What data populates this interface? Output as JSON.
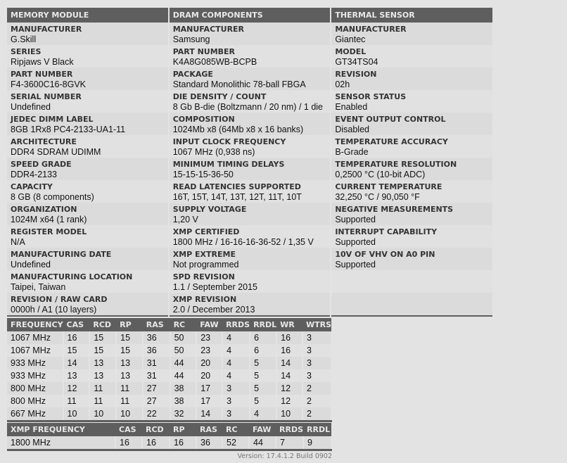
{
  "sections": [
    {
      "title": "MEMORY MODULE",
      "items": [
        {
          "label": "MANUFACTURER",
          "value": "G.Skill"
        },
        {
          "label": "SERIES",
          "value": "Ripjaws V Black"
        },
        {
          "label": "PART NUMBER",
          "value": "F4-3600C16-8GVK"
        },
        {
          "label": "SERIAL NUMBER",
          "value": "Undefined"
        },
        {
          "label": "JEDEC DIMM LABEL",
          "value": "8GB 1Rx8 PC4-2133-UA1-11"
        },
        {
          "label": "ARCHITECTURE",
          "value": "DDR4 SDRAM UDIMM"
        },
        {
          "label": "SPEED GRADE",
          "value": "DDR4-2133"
        },
        {
          "label": "CAPACITY",
          "value": "8 GB (8 components)"
        },
        {
          "label": "ORGANIZATION",
          "value": "1024M x64 (1 rank)"
        },
        {
          "label": "REGISTER MODEL",
          "value": "N/A"
        },
        {
          "label": "MANUFACTURING DATE",
          "value": "Undefined"
        },
        {
          "label": "MANUFACTURING LOCATION",
          "value": "Taipei, Taiwan"
        },
        {
          "label": "REVISION / RAW CARD",
          "value": "0000h / A1 (10 layers)"
        }
      ]
    },
    {
      "title": "DRAM COMPONENTS",
      "items": [
        {
          "label": "MANUFACTURER",
          "value": "Samsung"
        },
        {
          "label": "PART NUMBER",
          "value": "K4A8G085WB-BCPB"
        },
        {
          "label": "PACKAGE",
          "value": "Standard Monolithic 78-ball FBGA"
        },
        {
          "label": "DIE DENSITY / COUNT",
          "value": "8 Gb B-die (Boltzmann / 20 nm) / 1 die"
        },
        {
          "label": "COMPOSITION",
          "value": "1024Mb x8 (64Mb x8 x 16 banks)"
        },
        {
          "label": "INPUT CLOCK FREQUENCY",
          "value": "1067 MHz (0,938 ns)"
        },
        {
          "label": "MINIMUM TIMING DELAYS",
          "value": "15-15-15-36-50"
        },
        {
          "label": "READ LATENCIES SUPPORTED",
          "value": "16T, 15T, 14T, 13T, 12T, 11T, 10T"
        },
        {
          "label": "SUPPLY VOLTAGE",
          "value": "1,20 V"
        },
        {
          "label": "XMP CERTIFIED",
          "value": "1800 MHz / 16-16-16-36-52 / 1,35 V"
        },
        {
          "label": "XMP EXTREME",
          "value": "Not programmed"
        },
        {
          "label": "SPD REVISION",
          "value": "1.1 / September 2015"
        },
        {
          "label": "XMP REVISION",
          "value": "2.0 / December 2013"
        }
      ]
    },
    {
      "title": "THERMAL SENSOR",
      "items": [
        {
          "label": "MANUFACTURER",
          "value": "Giantec"
        },
        {
          "label": "MODEL",
          "value": "GT34TS04"
        },
        {
          "label": "REVISION",
          "value": "02h"
        },
        {
          "label": "SENSOR STATUS",
          "value": "Enabled"
        },
        {
          "label": "EVENT OUTPUT CONTROL",
          "value": "Disabled"
        },
        {
          "label": "TEMPERATURE ACCURACY",
          "value": "B-Grade"
        },
        {
          "label": "TEMPERATURE RESOLUTION",
          "value": "0,2500 °C (10-bit ADC)"
        },
        {
          "label": "CURRENT TEMPERATURE",
          "value": "32,250 °C / 90,050 °F"
        },
        {
          "label": "NEGATIVE MEASUREMENTS",
          "value": "Supported"
        },
        {
          "label": "INTERRUPT CAPABILITY",
          "value": "Supported"
        },
        {
          "label": "10V OF VHV ON A0 PIN",
          "value": "Supported"
        },
        {
          "label": "",
          "value": ""
        },
        {
          "label": "",
          "value": ""
        }
      ]
    }
  ],
  "timings": {
    "headers": [
      "FREQUENCY",
      "CAS",
      "RCD",
      "RP",
      "RAS",
      "RC",
      "FAW",
      "RRDS",
      "RRDL",
      "WR",
      "WTRS"
    ],
    "rows": [
      [
        "1067 MHz",
        "16",
        "15",
        "15",
        "36",
        "50",
        "23",
        "4",
        "6",
        "16",
        "3"
      ],
      [
        "1067 MHz",
        "15",
        "15",
        "15",
        "36",
        "50",
        "23",
        "4",
        "6",
        "16",
        "3"
      ],
      [
        "933 MHz",
        "14",
        "13",
        "13",
        "31",
        "44",
        "20",
        "4",
        "5",
        "14",
        "3"
      ],
      [
        "933 MHz",
        "13",
        "13",
        "13",
        "31",
        "44",
        "20",
        "4",
        "5",
        "14",
        "3"
      ],
      [
        "800 MHz",
        "12",
        "11",
        "11",
        "27",
        "38",
        "17",
        "3",
        "5",
        "12",
        "2"
      ],
      [
        "800 MHz",
        "11",
        "11",
        "11",
        "27",
        "38",
        "17",
        "3",
        "5",
        "12",
        "2"
      ],
      [
        "667 MHz",
        "10",
        "10",
        "10",
        "22",
        "32",
        "14",
        "3",
        "4",
        "10",
        "2"
      ]
    ]
  },
  "xmp": {
    "headers": [
      "XMP FREQUENCY",
      "CAS",
      "RCD",
      "RP",
      "RAS",
      "RC",
      "FAW",
      "RRDS",
      "RRDL"
    ],
    "rows": [
      [
        "1800 MHz",
        "16",
        "16",
        "16",
        "36",
        "52",
        "44",
        "7",
        "9"
      ]
    ]
  },
  "version": "Version: 17.4.1.2 Build 0902"
}
